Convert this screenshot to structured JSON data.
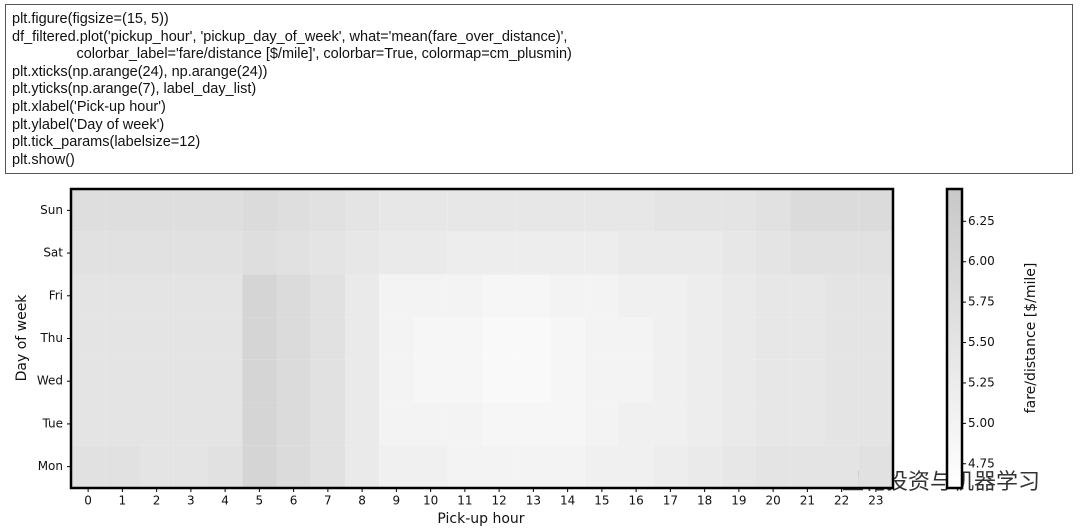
{
  "code": [
    "plt.figure(figsize=(15, 5))",
    "df_filtered.plot('pickup_hour', 'pickup_day_of_week', what='mean(fare_over_distance)',",
    "                colorbar_label='fare/distance [$/mile]', colorbar=True, colormap=cm_plusmin)",
    "plt.xticks(np.arange(24), np.arange(24))",
    "plt.yticks(np.arange(7), label_day_list)",
    "plt.xlabel('Pick-up hour')",
    "plt.ylabel('Day of week')",
    "plt.tick_params(labelsize=12)",
    "plt.show()"
  ],
  "watermark": "量化投资与机器学习",
  "chart_data": {
    "type": "heatmap",
    "x_label": "Pick-up hour",
    "y_label": "Day of week",
    "colorbar_label": "fare/distance [$/mile]",
    "xlim": [
      -0.5,
      23.5
    ],
    "xticks": [
      0,
      1,
      2,
      3,
      4,
      5,
      6,
      7,
      8,
      9,
      10,
      11,
      12,
      13,
      14,
      15,
      16,
      17,
      18,
      19,
      20,
      21,
      22,
      23
    ],
    "ylim": [
      -0.5,
      6.5
    ],
    "categories": [
      "Mon",
      "Tue",
      "Wed",
      "Thu",
      "Fri",
      "Sat",
      "Sun"
    ],
    "clim": [
      4.6,
      6.45
    ],
    "colorbar_ticks": [
      4.75,
      {
        "value": 5.0,
        "label": "5.00"
      },
      5.25,
      {
        "value": 5.5,
        "label": "5.50"
      },
      5.75,
      {
        "value": 6.0,
        "label": "6.00"
      },
      6.25
    ],
    "colormap": [
      "#ffffff",
      "#c8c8c8"
    ],
    "values": [
      [
        5.6,
        5.6,
        5.5,
        5.5,
        5.6,
        6.0,
        5.8,
        5.6,
        5.3,
        5.1,
        5.1,
        5.0,
        5.0,
        5.0,
        5.0,
        5.1,
        5.1,
        5.2,
        5.3,
        5.4,
        5.5,
        5.5,
        5.5,
        5.6
      ],
      [
        5.5,
        5.5,
        5.5,
        5.5,
        5.5,
        6.0,
        5.8,
        5.6,
        5.3,
        5.0,
        5.0,
        5.0,
        4.9,
        4.9,
        4.9,
        5.0,
        5.1,
        5.1,
        5.2,
        5.3,
        5.4,
        5.4,
        5.5,
        5.5
      ],
      [
        5.5,
        5.5,
        5.5,
        5.5,
        5.5,
        6.0,
        5.8,
        5.6,
        5.3,
        5.0,
        4.9,
        4.9,
        4.8,
        4.8,
        4.9,
        5.0,
        5.0,
        5.1,
        5.2,
        5.3,
        5.4,
        5.4,
        5.5,
        5.5
      ],
      [
        5.5,
        5.5,
        5.5,
        5.5,
        5.5,
        6.0,
        5.8,
        5.6,
        5.3,
        5.0,
        4.9,
        4.9,
        4.8,
        4.8,
        4.9,
        5.0,
        5.0,
        5.1,
        5.2,
        5.3,
        5.4,
        5.4,
        5.5,
        5.5
      ],
      [
        5.5,
        5.5,
        5.5,
        5.5,
        5.5,
        6.0,
        5.8,
        5.6,
        5.3,
        5.0,
        5.0,
        5.0,
        4.9,
        4.9,
        5.0,
        5.0,
        5.1,
        5.1,
        5.2,
        5.3,
        5.4,
        5.4,
        5.5,
        5.5
      ],
      [
        5.6,
        5.6,
        5.6,
        5.6,
        5.6,
        5.7,
        5.6,
        5.5,
        5.4,
        5.3,
        5.3,
        5.2,
        5.2,
        5.2,
        5.2,
        5.2,
        5.3,
        5.3,
        5.3,
        5.4,
        5.5,
        5.6,
        5.6,
        5.6
      ],
      [
        5.7,
        5.7,
        5.7,
        5.7,
        5.7,
        5.8,
        5.7,
        5.6,
        5.5,
        5.4,
        5.4,
        5.4,
        5.4,
        5.4,
        5.4,
        5.4,
        5.4,
        5.5,
        5.5,
        5.5,
        5.6,
        5.8,
        5.8,
        5.8
      ]
    ]
  }
}
